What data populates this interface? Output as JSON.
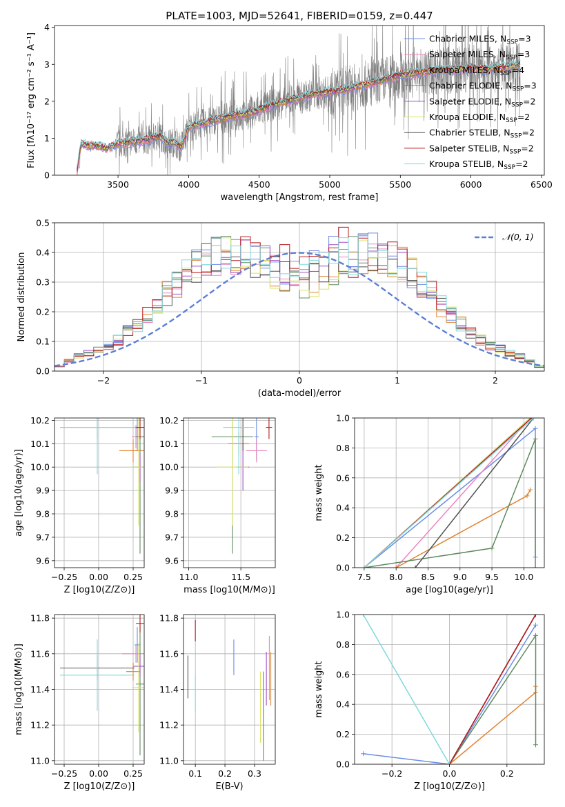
{
  "figure": {
    "title": "PLATE=1003, MJD=52641, FIBERID=0159, z=0.447"
  },
  "colors": {
    "data": "#808080",
    "gauss": "#5b7fd5",
    "CM": "#6b8ee6",
    "SM": "#ea86c0",
    "KM": "#e08330",
    "CE": "#5f8a5f",
    "SE": "#a04fc4",
    "KE": "#d8e36a",
    "CS": "#505050",
    "SS": "#b81c1c",
    "KS": "#80d8de"
  },
  "series": [
    {
      "key": "CM",
      "pre": "Chabrier MILES, N",
      "sub": "SSP",
      "post": "=3"
    },
    {
      "key": "SM",
      "pre": "Salpeter MILES, N",
      "sub": "SSP",
      "post": "=3"
    },
    {
      "key": "KM",
      "pre": "Kroupa MILES, N",
      "sub": "SSP",
      "post": "=4"
    },
    {
      "key": "CE",
      "pre": "Chabrier ELODIE, N",
      "sub": "SSP",
      "post": "=3"
    },
    {
      "key": "SE",
      "pre": "Salpeter ELODIE, N",
      "sub": "SSP",
      "post": "=2"
    },
    {
      "key": "KE",
      "pre": "Kroupa ELODIE, N",
      "sub": "SSP",
      "post": "=2"
    },
    {
      "key": "CS",
      "pre": "Chabrier STELIB, N",
      "sub": "SSP",
      "post": "=2"
    },
    {
      "key": "SS",
      "pre": "Salpeter STELIB, N",
      "sub": "SSP",
      "post": "=2"
    },
    {
      "key": "KS",
      "pre": "Kroupa STELIB, N",
      "sub": "SSP",
      "post": "=2"
    }
  ],
  "chart_data": [
    {
      "id": "spectrum",
      "type": "line",
      "xlabel": "wavelength [Angstrom, rest frame]",
      "ylabel": "Flux [fλ10⁻¹⁷ erg cm⁻² s⁻¹ A⁻¹]",
      "xlim": [
        3050,
        6520
      ],
      "ylim": [
        0,
        4.05
      ],
      "xticks": [
        3500,
        4000,
        4500,
        5000,
        5500,
        6000,
        6500
      ],
      "yticks": [
        0,
        1,
        2,
        3,
        4
      ],
      "x_range_data": [
        3210,
        6350
      ],
      "model_continuum": [
        [
          3210,
          0.1
        ],
        [
          3225,
          0.55
        ],
        [
          3240,
          0.85
        ],
        [
          3300,
          0.78
        ],
        [
          3350,
          0.8
        ],
        [
          3420,
          0.72
        ],
        [
          3500,
          0.85
        ],
        [
          3600,
          0.9
        ],
        [
          3700,
          0.95
        ],
        [
          3800,
          1.05
        ],
        [
          3850,
          0.85
        ],
        [
          3900,
          0.9
        ],
        [
          3940,
          0.75
        ],
        [
          3970,
          0.95
        ],
        [
          4000,
          1.3
        ],
        [
          4100,
          1.4
        ],
        [
          4200,
          1.5
        ],
        [
          4300,
          1.6
        ],
        [
          4400,
          1.65
        ],
        [
          4500,
          1.75
        ],
        [
          4600,
          1.9
        ],
        [
          4700,
          2.0
        ],
        [
          4800,
          2.1
        ],
        [
          4900,
          2.2
        ],
        [
          5000,
          2.25
        ],
        [
          5100,
          2.3
        ],
        [
          5200,
          2.4
        ],
        [
          5300,
          2.5
        ],
        [
          5400,
          2.6
        ],
        [
          5500,
          2.7
        ],
        [
          5600,
          2.75
        ],
        [
          5700,
          2.8
        ],
        [
          5800,
          2.85
        ],
        [
          5900,
          2.85
        ],
        [
          6000,
          2.9
        ],
        [
          6100,
          2.85
        ],
        [
          6200,
          2.9
        ],
        [
          6300,
          2.95
        ],
        [
          6350,
          3.0
        ]
      ],
      "model_spread": 0.15
    },
    {
      "id": "residuals",
      "type": "histogram",
      "xlabel": "(data-model)/error",
      "ylabel": "Normed distribution",
      "xlim": [
        -2.5,
        2.5
      ],
      "ylim": [
        0,
        0.5
      ],
      "xticks": [
        -2,
        -1,
        0,
        1,
        2
      ],
      "yticks": [
        0,
        0.1,
        0.2,
        0.3,
        0.4,
        0.5
      ],
      "bin_width": 0.1,
      "gauss_label": "𝒩(0, 1)",
      "reference_bins": [
        0.01,
        0.02,
        0.03,
        0.04,
        0.05,
        0.05,
        0.06,
        0.06,
        0.07,
        0.08,
        0.08,
        0.09,
        0.1,
        0.11,
        0.13,
        0.14,
        0.15,
        0.17,
        0.18,
        0.2,
        0.21,
        0.23,
        0.25,
        0.27,
        0.28,
        0.3,
        0.32,
        0.33,
        0.35,
        0.36,
        0.37,
        0.38,
        0.38,
        0.39,
        0.39,
        0.4,
        0.4,
        0.39,
        0.39,
        0.38,
        0.38,
        0.37,
        0.36,
        0.35,
        0.34,
        0.33,
        0.32,
        0.31,
        0.3,
        0.28,
        0.27,
        0.25,
        0.23,
        0.22,
        0.2,
        0.18,
        0.17,
        0.15,
        0.14,
        0.12,
        0.11,
        0.1,
        0.09,
        0.08,
        0.07,
        0.06,
        0.06,
        0.05,
        0.05,
        0.04,
        0.04,
        0.03,
        0.03,
        0.02,
        0.02,
        0.02,
        0.02,
        0.02,
        0.02,
        0.02,
        0.02,
        0.02,
        0.02,
        0.02,
        0.02,
        0.02,
        0.02,
        0.02,
        0.02,
        0.02,
        0.02,
        0.02,
        0.02,
        0.02,
        0.02,
        0.02,
        0.02,
        0.02,
        0.02,
        0.02
      ],
      "series_peaks": {
        "CM": 0.45,
        "SM": 0.41,
        "KM": 0.38,
        "CE": 0.4,
        "SE": 0.41,
        "KE": 0.37,
        "CS": 0.4,
        "SS": 0.48,
        "KS": 0.44
      }
    },
    {
      "id": "age_vs_Z",
      "type": "scatter",
      "xlabel": "Z [log10(Z/Z⊙)]",
      "ylabel": "age  [log10(age/yr)]",
      "xlim": [
        -0.32,
        0.33
      ],
      "ylim": [
        9.57,
        10.21
      ],
      "xticks": [
        -0.25,
        0.0,
        0.25
      ],
      "yticks": [
        9.6,
        9.7,
        9.8,
        9.9,
        10.0,
        10.1,
        10.2
      ],
      "points": {
        "CM": {
          "x": 0.28,
          "y": 10.17,
          "xe": 0.02,
          "ye": 0.1
        },
        "SM": {
          "x": 0.27,
          "y": 10.13,
          "xe": 0.03,
          "ye": 0.05
        },
        "KM": {
          "x": 0.25,
          "y": 10.07,
          "xe": 0.1,
          "ye": 0.05
        },
        "CE": {
          "x": 0.3,
          "y": 10.13,
          "xe": 0.03,
          "ye": 0.5
        },
        "SE": {
          "x": 0.3,
          "y": 10.0,
          "xe": 0.05,
          "ye": 0.06
        },
        "KE": {
          "x": 0.29,
          "y": 10.0,
          "xe": 0.05,
          "ye": 0.25
        },
        "CS": {
          "x": -0.01,
          "y": 10.17,
          "xe": 0.27,
          "ye": 0.05
        },
        "SS": {
          "x": 0.3,
          "y": 10.17,
          "xe": 0.03,
          "ye": 0.05
        },
        "KS": {
          "x": -0.01,
          "y": 10.17,
          "xe": 0.27,
          "ye": 0.2
        }
      }
    },
    {
      "id": "age_vs_mass",
      "type": "scatter",
      "xlabel": "mass [log10(M/M⊙)]",
      "ylabel": "",
      "xlim": [
        10.95,
        11.83
      ],
      "ylim": [
        9.57,
        10.21
      ],
      "xticks": [
        11.0,
        11.5
      ],
      "yticks": [
        9.6,
        9.7,
        9.8,
        9.9,
        10.0,
        10.1,
        10.2
      ],
      "points": {
        "CM": {
          "x": 11.65,
          "y": 10.13,
          "xe": 0.02,
          "ye": 0.1
        },
        "SM": {
          "x": 11.65,
          "y": 10.07,
          "xe": 0.1,
          "ye": 0.05
        },
        "KM": {
          "x": 11.48,
          "y": 10.1,
          "xe": 0.1,
          "ye": 0.05
        },
        "CE": {
          "x": 11.42,
          "y": 10.13,
          "xe": 0.2,
          "ye": 0.5
        },
        "SE": {
          "x": 11.52,
          "y": 10.0,
          "xe": 0.06,
          "ye": 0.1
        },
        "KE": {
          "x": 11.42,
          "y": 10.0,
          "xe": 0.15,
          "ye": 0.25
        },
        "CS": {
          "x": 11.52,
          "y": 10.17,
          "xe": 0.05,
          "ye": 0.1
        },
        "SS": {
          "x": 11.77,
          "y": 10.17,
          "xe": 0.03,
          "ye": 0.05
        },
        "KS": {
          "x": 11.48,
          "y": 10.17,
          "xe": 0.15,
          "ye": 0.2
        }
      }
    },
    {
      "id": "weight_vs_age",
      "type": "line",
      "xlabel": "age  [log10(age/yr)]",
      "ylabel": "mass weight",
      "xlim": [
        7.35,
        10.32
      ],
      "ylim": [
        0,
        1
      ],
      "xticks": [
        7.5,
        8.0,
        8.5,
        9.0,
        9.5,
        10.0
      ],
      "yticks": [
        0,
        0.2,
        0.4,
        0.6,
        0.8,
        1.0
      ],
      "cumulative": {
        "CM": [
          [
            7.5,
            0
          ],
          [
            10.18,
            0.93
          ],
          [
            10.18,
            0.07
          ]
        ],
        "SM": [
          [
            8.0,
            0
          ],
          [
            10.1,
            1.0
          ]
        ],
        "KM": [
          [
            8.0,
            0
          ],
          [
            10.05,
            0.48
          ],
          [
            10.1,
            0.52
          ]
        ],
        "CE": [
          [
            7.5,
            0
          ],
          [
            9.5,
            0.13
          ],
          [
            10.18,
            0.86
          ],
          [
            10.18,
            0
          ]
        ],
        "SE": [
          [
            7.5,
            0
          ],
          [
            10.1,
            1.0
          ]
        ],
        "KE": [
          [
            7.5,
            0
          ],
          [
            10.1,
            1.0
          ]
        ],
        "CS": [
          [
            8.3,
            0
          ],
          [
            10.15,
            1.0
          ]
        ],
        "SS": [
          [
            7.5,
            0
          ],
          [
            10.12,
            1.0
          ]
        ],
        "KS": [
          [
            7.5,
            0
          ],
          [
            10.15,
            1.0
          ]
        ]
      }
    },
    {
      "id": "mass_vs_Z",
      "type": "scatter",
      "xlabel": "Z [log10(Z/Z⊙)]",
      "ylabel": "mass [log10(M/M⊙)]",
      "xlim": [
        -0.32,
        0.33
      ],
      "ylim": [
        10.98,
        11.82
      ],
      "xticks": [
        -0.25,
        0.0,
        0.25
      ],
      "yticks": [
        11.0,
        11.2,
        11.4,
        11.6,
        11.8
      ],
      "points": {
        "CM": {
          "x": 0.28,
          "y": 11.65,
          "xe": 0.02,
          "ye": 0.1
        },
        "SM": {
          "x": 0.27,
          "y": 11.6,
          "xe": 0.1,
          "ye": 0.05
        },
        "KM": {
          "x": 0.25,
          "y": 11.5,
          "xe": 0.05,
          "ye": 0.05
        },
        "CE": {
          "x": 0.3,
          "y": 11.43,
          "xe": 0.03,
          "ye": 0.4
        },
        "SE": {
          "x": 0.3,
          "y": 11.53,
          "xe": 0.05,
          "ye": 0.06
        },
        "KE": {
          "x": 0.29,
          "y": 11.41,
          "xe": 0.05,
          "ye": 0.25
        },
        "CS": {
          "x": -0.01,
          "y": 11.52,
          "xe": 0.27,
          "ye": 0.07
        },
        "SS": {
          "x": 0.3,
          "y": 11.77,
          "xe": 0.03,
          "ye": 0.05
        },
        "KS": {
          "x": -0.01,
          "y": 11.48,
          "xe": 0.27,
          "ye": 0.2
        }
      }
    },
    {
      "id": "mass_vs_EBV",
      "type": "scatter",
      "xlabel": "E(B-V)",
      "ylabel": "",
      "xlim": [
        0.06,
        0.37
      ],
      "ylim": [
        10.98,
        11.82
      ],
      "xticks": [
        0.1,
        0.2,
        0.3
      ],
      "yticks": [
        11.0,
        11.2,
        11.4,
        11.6,
        11.8
      ],
      "points": {
        "CM": {
          "x": 0.23,
          "y": 11.58,
          "xe": 0,
          "ye": 0.1
        },
        "SM": {
          "x": 0.35,
          "y": 11.52,
          "xe": 0,
          "ye": 0.18
        },
        "KM": {
          "x": 0.355,
          "y": 11.46,
          "xe": 0,
          "ye": 0.15
        },
        "CE": {
          "x": 0.33,
          "y": 11.25,
          "xe": 0,
          "ye": 0.25
        },
        "SE": {
          "x": 0.34,
          "y": 11.46,
          "xe": 0,
          "ye": 0.15
        },
        "KE": {
          "x": 0.32,
          "y": 11.3,
          "xe": 0,
          "ye": 0.2
        },
        "CS": {
          "x": 0.075,
          "y": 11.47,
          "xe": 0,
          "ye": 0.12
        },
        "SS": {
          "x": 0.1,
          "y": 11.73,
          "xe": 0,
          "ye": 0.06
        },
        "KS": {
          "x": 0.1,
          "y": 11.38,
          "xe": 0,
          "ye": 0.1
        }
      }
    },
    {
      "id": "weight_vs_Z",
      "type": "line",
      "xlabel": "Z [log10(Z/Z⊙)]",
      "ylabel": "mass weight",
      "xlim": [
        -0.33,
        0.33
      ],
      "ylim": [
        0,
        1
      ],
      "xticks": [
        -0.2,
        0.0,
        0.2
      ],
      "yticks": [
        0,
        0.2,
        0.4,
        0.6,
        0.8,
        1.0
      ],
      "cumulative": {
        "CM": [
          [
            -0.3,
            0.07
          ],
          [
            0,
            0
          ],
          [
            0.3,
            0.93
          ]
        ],
        "SM": [
          [
            0,
            0
          ],
          [
            0.3,
            1.0
          ]
        ],
        "KM": [
          [
            0,
            0
          ],
          [
            0.3,
            0.48
          ],
          [
            0.3,
            0.52
          ]
        ],
        "CE": [
          [
            0,
            0
          ],
          [
            0.3,
            0.86
          ],
          [
            0.3,
            0.13
          ]
        ],
        "SE": [
          [
            0,
            0
          ],
          [
            0.3,
            1.0
          ]
        ],
        "KE": [
          [
            0,
            0
          ],
          [
            0.3,
            1.0
          ]
        ],
        "CS": [
          [
            0,
            0
          ],
          [
            0.3,
            1.0
          ]
        ],
        "SS": [
          [
            0,
            0
          ],
          [
            0.3,
            1.0
          ]
        ],
        "KS": [
          [
            -0.3,
            1.0
          ],
          [
            0,
            0
          ]
        ]
      }
    }
  ]
}
